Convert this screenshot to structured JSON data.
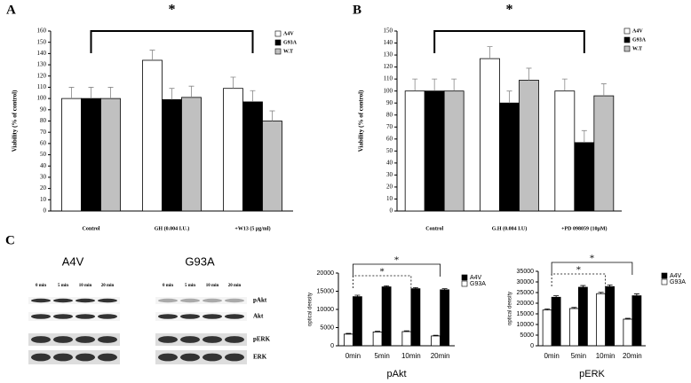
{
  "panel_c": "C",
  "blots": [
    {
      "title": "A4V",
      "times": [
        "0 min",
        "5 min",
        "10 min",
        "20 min"
      ]
    },
    {
      "title": "G93A",
      "times": [
        "0 min",
        "5 min",
        "10 min",
        "20 min"
      ]
    }
  ],
  "bands": [
    "pAkt",
    "Akt",
    "pERK",
    "ERK"
  ],
  "chart_data": [
    {
      "type": "bar",
      "panel": "A",
      "annotations": [
        "*"
      ],
      "ylabel": "Viability (% of control)",
      "categories": [
        "Control",
        "GH (0.004 I.U.)",
        "+W13 (5 μg/ml)"
      ],
      "series": [
        {
          "name": "A4V",
          "color": "#ffffff",
          "values": [
            100,
            134,
            109
          ],
          "errors": [
            10,
            9,
            10
          ]
        },
        {
          "name": "G93A",
          "color": "#000000",
          "values": [
            100,
            99,
            97
          ],
          "errors": [
            10,
            10,
            10
          ]
        },
        {
          "name": "W.T",
          "color": "#c0c0c0",
          "values": [
            100,
            101,
            80
          ],
          "errors": [
            10,
            10,
            9
          ]
        }
      ],
      "ylim": [
        0,
        160
      ],
      "yticks": [
        0,
        10,
        20,
        30,
        40,
        50,
        60,
        70,
        80,
        90,
        100,
        110,
        120,
        130,
        140,
        150,
        160
      ],
      "legend": "upper right"
    },
    {
      "type": "bar",
      "panel": "B",
      "annotations": [
        "*"
      ],
      "ylabel": "Viability (% of control)",
      "categories": [
        "Control",
        "G.H (0.004 I.U)",
        "+PD 098059 (10μM)"
      ],
      "series": [
        {
          "name": "A4V",
          "color": "#ffffff",
          "values": [
            100,
            127,
            100
          ],
          "errors": [
            10,
            10,
            10
          ]
        },
        {
          "name": "G93A",
          "color": "#000000",
          "values": [
            100,
            90,
            57
          ],
          "errors": [
            10,
            10,
            10
          ]
        },
        {
          "name": "W.T",
          "color": "#c0c0c0",
          "values": [
            100,
            109,
            96
          ],
          "errors": [
            10,
            10,
            10
          ]
        }
      ],
      "ylim": [
        0,
        150
      ],
      "yticks": [
        0,
        10,
        20,
        30,
        40,
        50,
        60,
        70,
        80,
        90,
        100,
        110,
        120,
        130,
        140,
        150
      ],
      "legend": "upper right"
    },
    {
      "type": "bar",
      "annotations": [
        "*",
        "*"
      ],
      "ylabel": "optical density",
      "xlabel": "pAkt",
      "categories": [
        "0min",
        "5min",
        "10min",
        "20min"
      ],
      "series": [
        {
          "name": "A4V",
          "color": "#000000",
          "values": [
            13500,
            16200,
            15700,
            15400
          ],
          "errors": [
            400,
            300,
            300,
            300
          ]
        },
        {
          "name": "G93A",
          "color": "#ffffff",
          "values": [
            3200,
            3800,
            3900,
            2700
          ],
          "errors": [
            200,
            200,
            200,
            200
          ]
        }
      ],
      "ylim": [
        0,
        20000
      ],
      "yticks": [
        0,
        5000,
        10000,
        15000,
        20000
      ],
      "legend": "upper right"
    },
    {
      "type": "bar",
      "annotations": [
        "*",
        "*"
      ],
      "ylabel": "optical density",
      "xlabel": "pERK",
      "categories": [
        "0min",
        "5min",
        "10min",
        "20min"
      ],
      "series": [
        {
          "name": "A4V",
          "color": "#000000",
          "values": [
            22800,
            27500,
            27800,
            23500
          ],
          "errors": [
            700,
            800,
            800,
            900
          ]
        },
        {
          "name": "G93A",
          "color": "#ffffff",
          "values": [
            16800,
            17500,
            24500,
            12500
          ],
          "errors": [
            500,
            500,
            600,
            400
          ]
        }
      ],
      "ylim": [
        0,
        35000
      ],
      "yticks": [
        0,
        5000,
        10000,
        15000,
        20000,
        25000,
        30000,
        35000
      ],
      "legend": "upper right"
    }
  ]
}
